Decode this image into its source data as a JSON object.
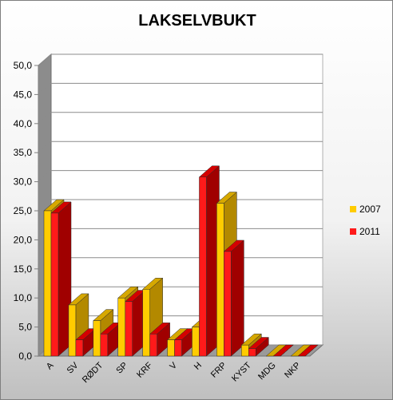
{
  "chart_data": {
    "type": "bar",
    "title": "LAKSELVBUKT",
    "categories": [
      "A",
      "SV",
      "RØDT",
      "SP",
      "KRF",
      "V",
      "H",
      "FRP",
      "KYST",
      "MDG",
      "NKP"
    ],
    "series": [
      {
        "name": "2007",
        "values": [
          25.0,
          8.8,
          6.1,
          10.0,
          11.5,
          2.8,
          5.0,
          26.3,
          1.9,
          0.0,
          0.0
        ]
      },
      {
        "name": "2011",
        "values": [
          24.6,
          2.8,
          3.8,
          9.4,
          3.8,
          2.8,
          30.8,
          18.0,
          1.3,
          0.0,
          0.0
        ]
      }
    ],
    "ylim": [
      0,
      50
    ],
    "yticks": [
      "0,0",
      "5,0",
      "10,0",
      "15,0",
      "20,0",
      "25,0",
      "30,0",
      "35,0",
      "40,0",
      "45,0",
      "50,0"
    ],
    "grid": true,
    "legend_position": "right",
    "colors": {
      "2007_front": "#ffcc00",
      "2007_side": "#b38900",
      "2007_top": "#d6a800",
      "2011_front": "#ff1a1a",
      "2011_side": "#a00000",
      "2011_top": "#d40000"
    }
  }
}
